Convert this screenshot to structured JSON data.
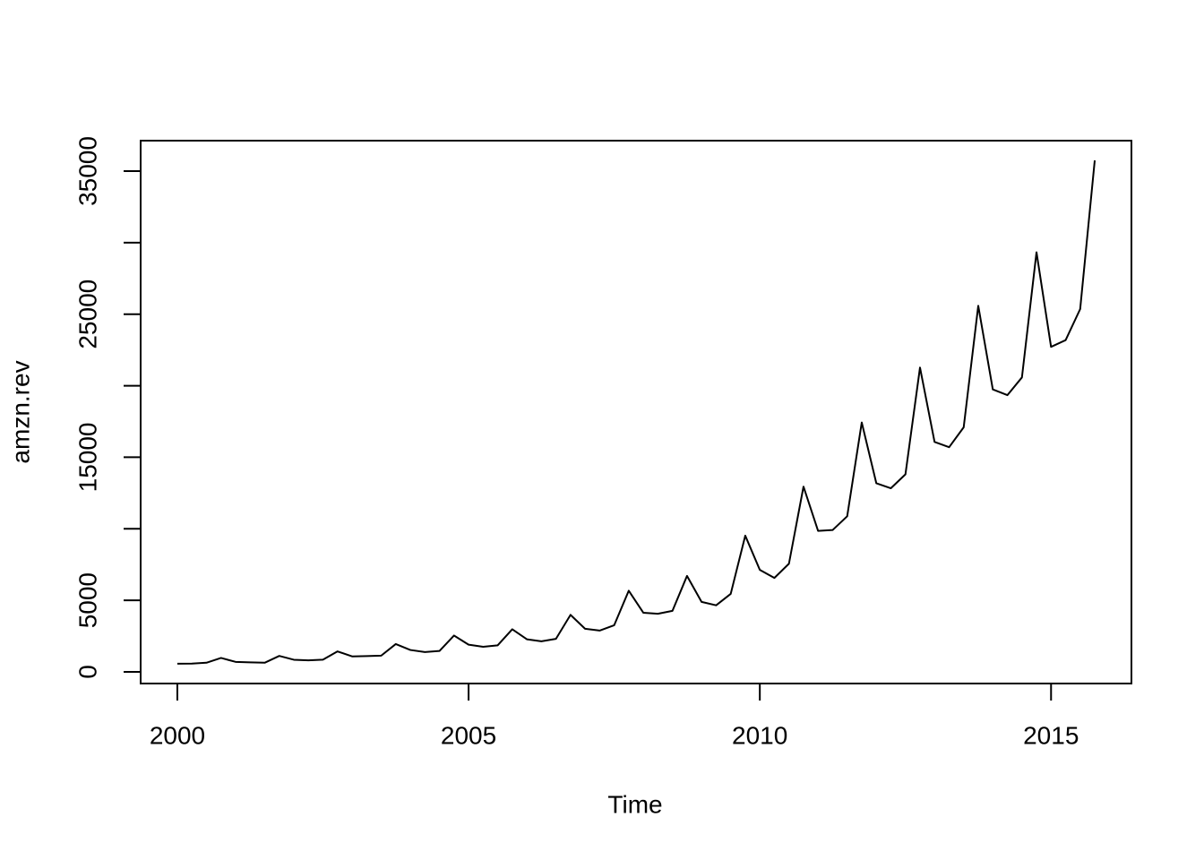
{
  "chart_data": {
    "type": "line",
    "x_label": "Time",
    "y_label": "amzn.rev",
    "x": [
      2000,
      2000.25,
      2000.5,
      2000.75,
      2001,
      2001.25,
      2001.5,
      2001.75,
      2002,
      2002.25,
      2002.5,
      2002.75,
      2003,
      2003.25,
      2003.5,
      2003.75,
      2004,
      2004.25,
      2004.5,
      2004.75,
      2005,
      2005.25,
      2005.5,
      2005.75,
      2006,
      2006.25,
      2006.5,
      2006.75,
      2007,
      2007.25,
      2007.5,
      2007.75,
      2008,
      2008.25,
      2008.5,
      2008.75,
      2009,
      2009.25,
      2009.5,
      2009.75,
      2010,
      2010.25,
      2010.5,
      2010.75,
      2011,
      2011.25,
      2011.5,
      2011.75,
      2012,
      2012.25,
      2012.5,
      2012.75,
      2013,
      2013.25,
      2013.5,
      2013.75,
      2014,
      2014.25,
      2014.5,
      2014.75,
      2015,
      2015.25,
      2015.5,
      2015.75
    ],
    "series": [
      {
        "color": "#000000",
        "values": [
          574,
          578,
          638,
          972,
          700,
          668,
          639,
          1115,
          847,
          806,
          851,
          1429,
          1084,
          1100,
          1134,
          1946,
          1530,
          1387,
          1462,
          2540,
          1902,
          1753,
          1858,
          2977,
          2279,
          2139,
          2307,
          3986,
          3015,
          2886,
          3262,
          5673,
          4135,
          4063,
          4264,
          6704,
          4889,
          4651,
          5449,
          9520,
          7131,
          6566,
          7560,
          12948,
          9857,
          9913,
          10876,
          17431,
          13185,
          12834,
          13806,
          21268,
          16070,
          15704,
          17092,
          25587,
          19741,
          19340,
          20579,
          29328,
          22717,
          23185,
          25358,
          35747
        ]
      }
    ],
    "xlim": [
      1999.37,
      2016.38
    ],
    "xticks": [
      2000,
      2005,
      2010,
      2015
    ],
    "ylim": [
      -814,
      37128
    ],
    "yticks": [
      0,
      5000,
      10000,
      15000,
      20000,
      25000,
      30000,
      35000
    ]
  }
}
